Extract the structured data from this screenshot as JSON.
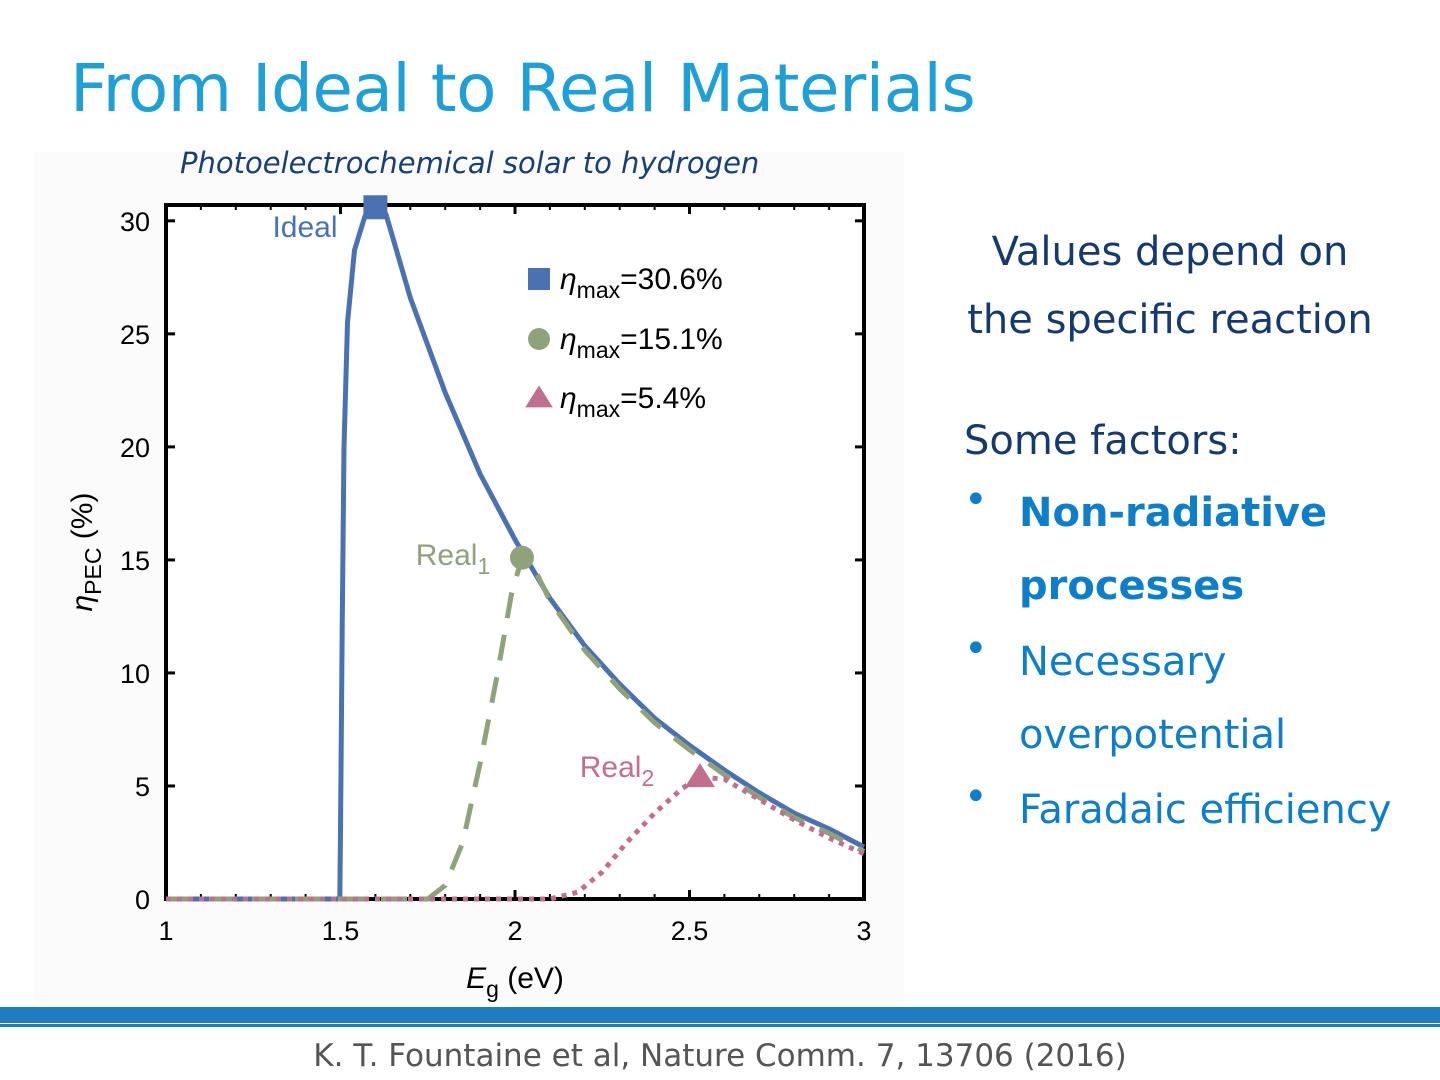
{
  "slide": {
    "title": "From Ideal to Real Materials",
    "subtitle": "Photoelectrochemical solar to hydrogen",
    "right_heading_lines": [
      "Values depend on",
      "the specific reaction"
    ],
    "factors_label": "Some factors:",
    "bullets": [
      {
        "text": "Non-radiative processes",
        "bold": true
      },
      {
        "text": "Necessary overpotential",
        "bold": false
      },
      {
        "text": "Faradaic efficiency",
        "bold": false
      }
    ],
    "bullet_symbol": "•",
    "citation": "K. T. Fountaine et al, Nature Comm. 7, 13706 (2016)",
    "colors": {
      "title": "#1e9fd5",
      "heading": "#163a6c",
      "bullets": "#0d7ec7",
      "footer_bar": "#1f7cc0"
    }
  },
  "chart_data": {
    "type": "line",
    "title": "Photoelectrochemical solar to hydrogen",
    "xlabel": {
      "symbol": "E",
      "sub": "g",
      "rest": " (eV)"
    },
    "ylabel": {
      "symbol": "η",
      "sub": "PEC",
      "rest": " (%)"
    },
    "xlim": [
      1,
      3
    ],
    "ylim": [
      0,
      30.7
    ],
    "xticks": [
      1,
      1.5,
      2,
      2.5,
      3
    ],
    "xtick_labels": [
      "1",
      "1.5",
      "2",
      "2.5",
      "3"
    ],
    "yticks": [
      0,
      5,
      10,
      15,
      20,
      25,
      30
    ],
    "ytick_labels": [
      "0",
      "5",
      "10",
      "15",
      "20",
      "25",
      "30"
    ],
    "grid": false,
    "legend_position": "top-right",
    "series": [
      {
        "name": "Ideal",
        "color": "#4a72b0",
        "dash": "solid",
        "marker": "square",
        "peak": {
          "x": 1.6,
          "y": 30.6
        },
        "legend_label": "=30.6%",
        "points": [
          [
            1.0,
            0
          ],
          [
            1.498,
            0
          ],
          [
            1.5,
            3.0
          ],
          [
            1.505,
            12.0
          ],
          [
            1.51,
            20.0
          ],
          [
            1.52,
            25.5
          ],
          [
            1.54,
            28.7
          ],
          [
            1.57,
            30.2
          ],
          [
            1.6,
            30.6
          ],
          [
            1.63,
            30.3
          ],
          [
            1.7,
            26.6
          ],
          [
            1.8,
            22.4
          ],
          [
            1.9,
            18.8
          ],
          [
            2.0,
            15.9
          ],
          [
            2.1,
            13.3
          ],
          [
            2.2,
            11.2
          ],
          [
            2.3,
            9.5
          ],
          [
            2.4,
            8.0
          ],
          [
            2.5,
            6.8
          ],
          [
            2.6,
            5.7
          ],
          [
            2.7,
            4.7
          ],
          [
            2.8,
            3.8
          ],
          [
            2.9,
            3.1
          ],
          [
            3.0,
            2.3
          ]
        ]
      },
      {
        "name": "Real",
        "name_sub": "1",
        "color": "#8fa27a",
        "dash": "dashed",
        "marker": "circle",
        "peak": {
          "x": 2.02,
          "y": 15.1
        },
        "legend_label": "=15.1%",
        "points": [
          [
            1.0,
            0
          ],
          [
            1.75,
            0
          ],
          [
            1.8,
            0.6
          ],
          [
            1.85,
            2.5
          ],
          [
            1.9,
            6.0
          ],
          [
            1.95,
            10.0
          ],
          [
            1.99,
            13.5
          ],
          [
            2.02,
            15.1
          ],
          [
            2.05,
            14.8
          ],
          [
            2.1,
            13.2
          ],
          [
            2.2,
            11.0
          ],
          [
            2.3,
            9.3
          ],
          [
            2.4,
            7.8
          ],
          [
            2.5,
            6.6
          ],
          [
            2.6,
            5.5
          ],
          [
            2.7,
            4.5
          ],
          [
            2.8,
            3.6
          ],
          [
            2.9,
            2.9
          ],
          [
            3.0,
            2.1
          ]
        ]
      },
      {
        "name": "Real",
        "name_sub": "2",
        "color": "#c0708e",
        "dash": "dotted",
        "marker": "triangle",
        "peak": {
          "x": 2.53,
          "y": 5.4
        },
        "legend_label": "=5.4%",
        "points": [
          [
            1.0,
            0
          ],
          [
            2.1,
            0
          ],
          [
            2.18,
            0.3
          ],
          [
            2.25,
            1.2
          ],
          [
            2.32,
            2.5
          ],
          [
            2.4,
            3.8
          ],
          [
            2.48,
            4.9
          ],
          [
            2.53,
            5.4
          ],
          [
            2.6,
            5.3
          ],
          [
            2.7,
            4.4
          ],
          [
            2.8,
            3.5
          ],
          [
            2.9,
            2.7
          ],
          [
            3.0,
            2.0
          ]
        ]
      }
    ],
    "legend_symbol": "η",
    "legend_sub": "max"
  }
}
